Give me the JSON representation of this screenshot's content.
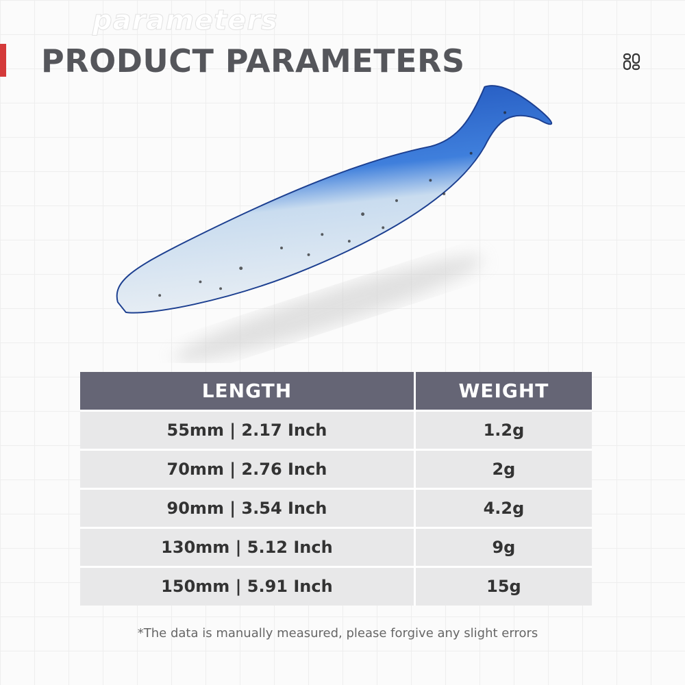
{
  "header": {
    "watermark": "parameters",
    "title": "PRODUCT PARAMETERS",
    "menu_icon": "grid-menu-icon",
    "accent": "#d43a3a"
  },
  "product": {
    "image": "soft-plastic paddle-tail fishing lure, blue back with clear glitter belly"
  },
  "table": {
    "headers": [
      "LENGTH",
      "WEIGHT"
    ],
    "rows": [
      [
        "55mm | 2.17 Inch",
        "1.2g"
      ],
      [
        "70mm | 2.76 Inch",
        "2g"
      ],
      [
        "90mm | 3.54 Inch",
        "4.2g"
      ],
      [
        "130mm | 5.12 Inch",
        "9g"
      ],
      [
        "150mm | 5.91 Inch",
        "15g"
      ]
    ],
    "header_color": "#656575"
  },
  "footnote": "*The data is manually measured, please forgive any slight errors"
}
